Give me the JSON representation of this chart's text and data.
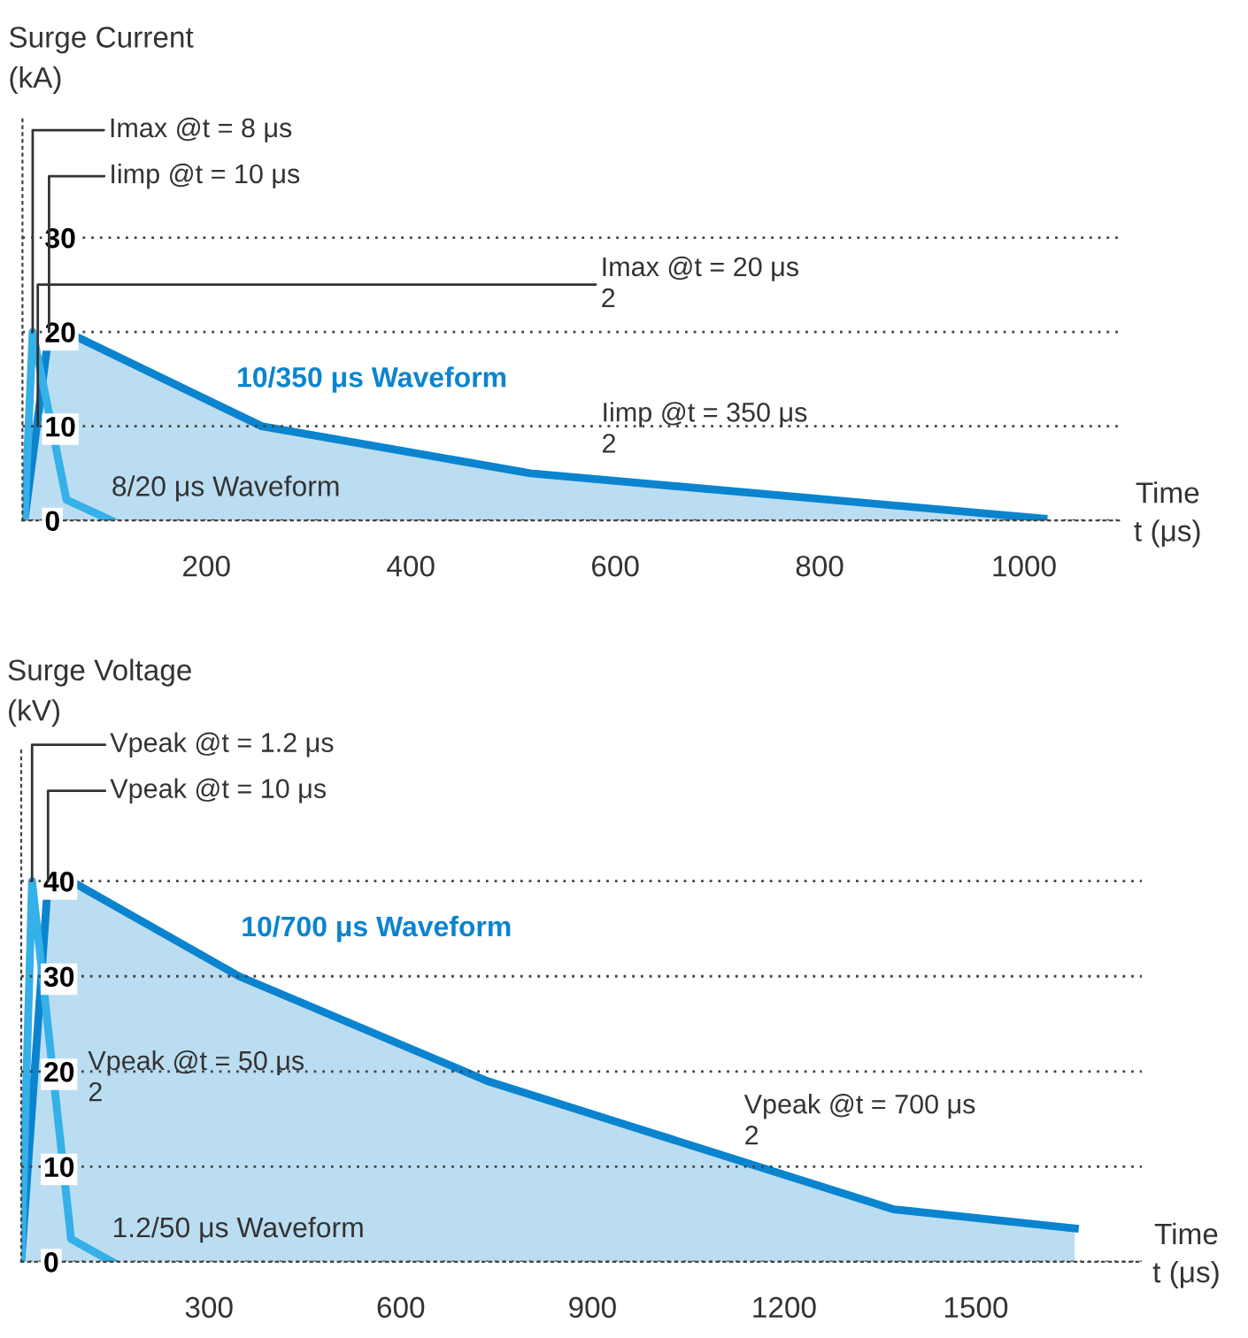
{
  "chart_data": [
    {
      "type": "area",
      "ylabel": "Surge Current\n(kA)",
      "xlabel": "Time\nt (μs)",
      "xlim": [
        20,
        1097
      ],
      "ylim": [
        0,
        43
      ],
      "xticks": [
        200,
        400,
        600,
        800,
        1000
      ],
      "yticks": [
        0,
        10,
        20,
        30
      ],
      "grid": "y",
      "series": [
        {
          "name": "10/350 μs Waveform",
          "type": "area",
          "color": "#0b84cf",
          "x": [
            22,
            46,
            63,
            254,
            517,
            1019
          ],
          "values": [
            0,
            20,
            20,
            10,
            5,
            0.2
          ]
        },
        {
          "name": "8/20 μs Waveform",
          "type": "line",
          "color": "#35b0e8",
          "x": [
            22,
            30,
            63,
            107
          ],
          "values": [
            0,
            20,
            2.2,
            0
          ]
        }
      ],
      "annotations": [
        {
          "text": "Imax @t = 8 μs",
          "x": 30,
          "y": 20
        },
        {
          "text": "Iimp @t = 10 μs",
          "x": 46,
          "y": 20
        },
        {
          "text": "Imax @t = 20 μs\n2",
          "x": 35,
          "y": 10
        },
        "Iimp @t = 350 μs\n2"
      ]
    },
    {
      "type": "area",
      "ylabel": "Surge Voltage\n(kV)",
      "xlabel": "Time\nt (μs)",
      "xlim": [
        6,
        1760
      ],
      "ylim": [
        0,
        54
      ],
      "xticks": [
        300,
        600,
        900,
        1200,
        1500
      ],
      "yticks": [
        0,
        10,
        20,
        30,
        40
      ],
      "grid": "y",
      "series": [
        {
          "name": "10/700 μs Waveform",
          "type": "area",
          "color": "#0b84cf",
          "x": [
            6,
            48,
            84,
            347,
            735,
            1372,
            1655
          ],
          "values": [
            0,
            40,
            40,
            30,
            19,
            5.5,
            3.5
          ]
        },
        {
          "name": "1.2/50 μs Waveform",
          "type": "line",
          "color": "#35b0e8",
          "x": [
            6,
            23,
            84,
            148
          ],
          "values": [
            0,
            40,
            2.4,
            0
          ]
        }
      ],
      "annotations": [
        {
          "text": "Vpeak @t = 1.2 μs",
          "x": 23,
          "y": 40
        },
        {
          "text": "Vpeak @t = 10 μs",
          "x": 48,
          "y": 40
        },
        {
          "text": "Vpeak @t = 50 μs\n2",
          "x": 55,
          "y": 20
        },
        "Vpeak @t = 700 μs\n2"
      ]
    }
  ]
}
